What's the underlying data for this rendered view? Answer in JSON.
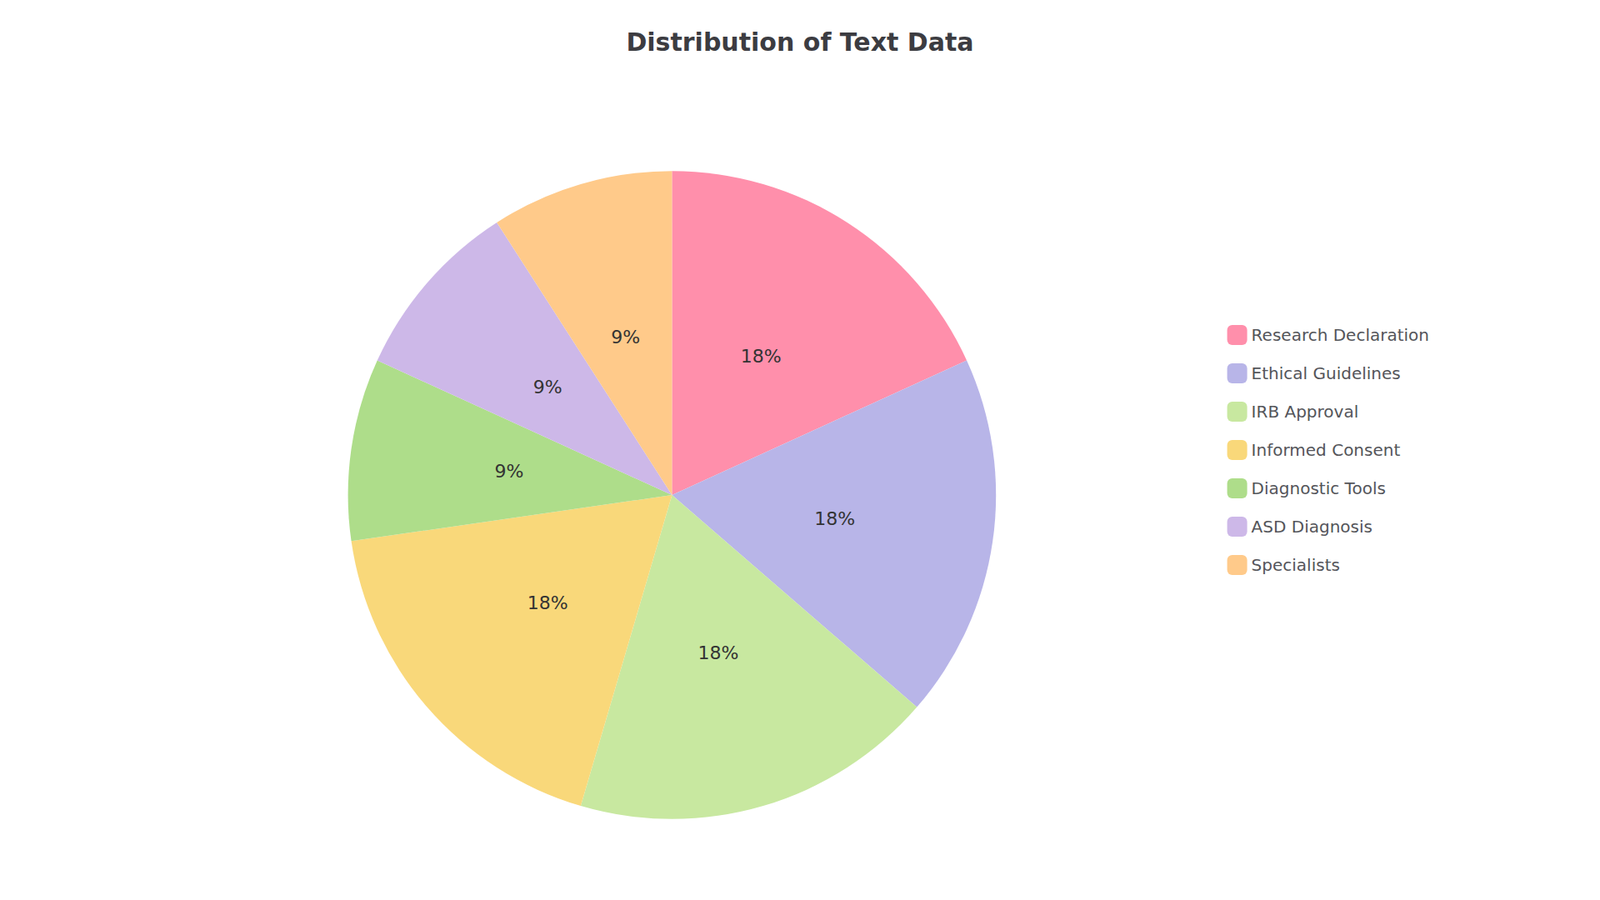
{
  "chart_data": {
    "type": "pie",
    "title": "Distribution of Text Data",
    "categories": [
      "Research Declaration",
      "Ethical Guidelines",
      "IRB Approval",
      "Informed Consent",
      "Diagnostic Tools",
      "ASD Diagnosis",
      "Specialists"
    ],
    "values": [
      18,
      18,
      18,
      18,
      9,
      9,
      9
    ],
    "value_labels": [
      "18%",
      "18%",
      "18%",
      "18%",
      "9%",
      "9%",
      "9%"
    ],
    "colors": [
      "#FF8FAB",
      "#B8B5E8",
      "#C8E8A0",
      "#F9D87A",
      "#AEDD8A",
      "#CDB8E8",
      "#FFCA8A"
    ],
    "data_labels": true,
    "legend": "right"
  }
}
